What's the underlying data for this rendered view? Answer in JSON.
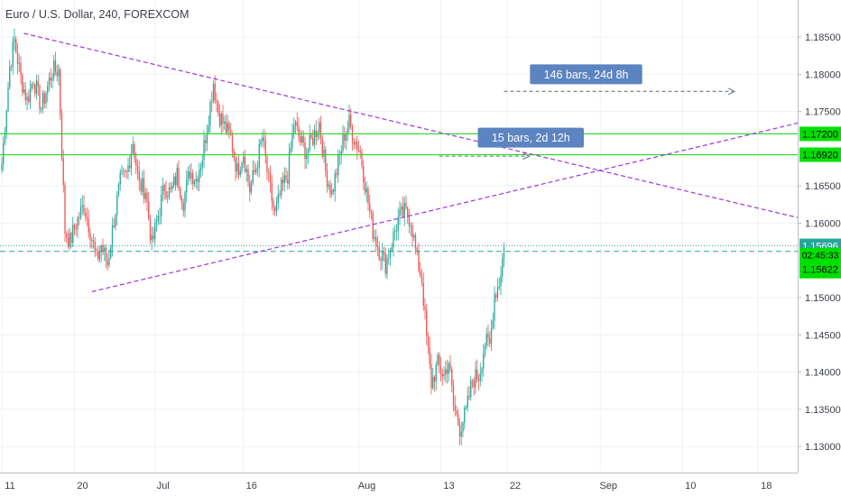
{
  "title": "Euro / U.S. Dollar, 240, FOREXCOM",
  "colors": {
    "up": "#26a69a",
    "down": "#ef5350",
    "grid": "#eef0f3",
    "hline": "#22dd22",
    "trend": "#9c35e0",
    "label_bg": "#5b84c0",
    "price_label": "#00e000",
    "axis_text": "#3a3e47"
  },
  "chart_data": {
    "type": "candlestick",
    "y_range": [
      1.1265,
      1.1895
    ],
    "y_ticks": [
      {
        "value": 1.185,
        "label": "1.18500"
      },
      {
        "value": 1.18,
        "label": "1.18000"
      },
      {
        "value": 1.175,
        "label": "1.17500"
      },
      {
        "value": 1.172,
        "label": "1.17200",
        "highlight": true
      },
      {
        "value": 1.1692,
        "label": "1.16920",
        "highlight": true
      },
      {
        "value": 1.165,
        "label": "1.16500"
      },
      {
        "value": 1.16,
        "label": "1.16000"
      },
      {
        "value": 1.15,
        "label": "1.15000"
      },
      {
        "value": 1.145,
        "label": "1.14500"
      },
      {
        "value": 1.14,
        "label": "1.14000"
      },
      {
        "value": 1.135,
        "label": "1.13500"
      },
      {
        "value": 1.13,
        "label": "1.13000"
      }
    ],
    "x_labels": [
      {
        "label": "11",
        "bar": 0
      },
      {
        "label": "20",
        "bar": 46
      },
      {
        "label": "Jul",
        "bar": 97
      },
      {
        "label": "16",
        "bar": 153
      },
      {
        "label": "Aug",
        "bar": 226
      },
      {
        "label": "13",
        "bar": 278
      },
      {
        "label": "22",
        "bar": 320
      },
      {
        "label": "Sep",
        "bar": 379
      },
      {
        "label": "10",
        "bar": 431
      },
      {
        "label": "18",
        "bar": 479
      }
    ],
    "horizontal_lines": [
      1.172,
      1.1692
    ],
    "price_labels": [
      {
        "value": 1.15696,
        "label": "1.15696"
      },
      {
        "value": 1.15622,
        "label": "02:45:33",
        "sublabel": "1.15622"
      }
    ],
    "trend_lines": [
      {
        "from": {
          "bar": 14,
          "price": 1.1855
        },
        "to": {
          "bar": 505,
          "price": 1.1607
        }
      },
      {
        "from": {
          "bar": 57,
          "price": 1.1508
        },
        "to": {
          "bar": 505,
          "price": 1.1735
        }
      }
    ],
    "measure_labels": [
      {
        "text": "146 bars, 24d 8h",
        "label_at": {
          "bar": 370,
          "price": 1.18
        },
        "arrow_from": {
          "bar": 318,
          "price": 1.1777
        },
        "arrow_to": {
          "bar": 464,
          "price": 1.1777
        }
      },
      {
        "text": "15 bars, 2d 12h",
        "label_at": {
          "bar": 335,
          "price": 1.1715
        },
        "arrow_from": {
          "bar": 277,
          "price": 1.169
        },
        "arrow_to": {
          "bar": 334,
          "price": 1.169
        }
      }
    ],
    "anchors": [
      {
        "bar": 0,
        "price": 1.168
      },
      {
        "bar": 5,
        "price": 1.181
      },
      {
        "bar": 8,
        "price": 1.1845
      },
      {
        "bar": 12,
        "price": 1.1795
      },
      {
        "bar": 16,
        "price": 1.1765
      },
      {
        "bar": 20,
        "price": 1.1795
      },
      {
        "bar": 25,
        "price": 1.1755
      },
      {
        "bar": 32,
        "price": 1.1805
      },
      {
        "bar": 36,
        "price": 1.1805
      },
      {
        "bar": 40,
        "price": 1.159
      },
      {
        "bar": 43,
        "price": 1.1575
      },
      {
        "bar": 48,
        "price": 1.1605
      },
      {
        "bar": 52,
        "price": 1.1625
      },
      {
        "bar": 56,
        "price": 1.159
      },
      {
        "bar": 60,
        "price": 1.155
      },
      {
        "bar": 63,
        "price": 1.157
      },
      {
        "bar": 67,
        "price": 1.1545
      },
      {
        "bar": 71,
        "price": 1.1605
      },
      {
        "bar": 75,
        "price": 1.1655
      },
      {
        "bar": 79,
        "price": 1.1665
      },
      {
        "bar": 83,
        "price": 1.171
      },
      {
        "bar": 87,
        "price": 1.165
      },
      {
        "bar": 91,
        "price": 1.1645
      },
      {
        "bar": 95,
        "price": 1.157
      },
      {
        "bar": 99,
        "price": 1.161
      },
      {
        "bar": 103,
        "price": 1.165
      },
      {
        "bar": 107,
        "price": 1.164
      },
      {
        "bar": 111,
        "price": 1.1665
      },
      {
        "bar": 115,
        "price": 1.163
      },
      {
        "bar": 119,
        "price": 1.167
      },
      {
        "bar": 123,
        "price": 1.166
      },
      {
        "bar": 127,
        "price": 1.169
      },
      {
        "bar": 131,
        "price": 1.1745
      },
      {
        "bar": 134,
        "price": 1.179
      },
      {
        "bar": 137,
        "price": 1.175
      },
      {
        "bar": 141,
        "price": 1.173
      },
      {
        "bar": 145,
        "price": 1.1715
      },
      {
        "bar": 149,
        "price": 1.167
      },
      {
        "bar": 153,
        "price": 1.1695
      },
      {
        "bar": 157,
        "price": 1.1645
      },
      {
        "bar": 161,
        "price": 1.1675
      },
      {
        "bar": 165,
        "price": 1.1715
      },
      {
        "bar": 169,
        "price": 1.1655
      },
      {
        "bar": 173,
        "price": 1.161
      },
      {
        "bar": 177,
        "price": 1.1645
      },
      {
        "bar": 181,
        "price": 1.1665
      },
      {
        "bar": 185,
        "price": 1.1735
      },
      {
        "bar": 189,
        "price": 1.171
      },
      {
        "bar": 193,
        "price": 1.1695
      },
      {
        "bar": 197,
        "price": 1.1715
      },
      {
        "bar": 201,
        "price": 1.1735
      },
      {
        "bar": 205,
        "price": 1.167
      },
      {
        "bar": 209,
        "price": 1.164
      },
      {
        "bar": 213,
        "price": 1.168
      },
      {
        "bar": 217,
        "price": 1.172
      },
      {
        "bar": 220,
        "price": 1.1735
      },
      {
        "bar": 223,
        "price": 1.1715
      },
      {
        "bar": 227,
        "price": 1.1695
      },
      {
        "bar": 231,
        "price": 1.164
      },
      {
        "bar": 235,
        "price": 1.159
      },
      {
        "bar": 239,
        "price": 1.1565
      },
      {
        "bar": 243,
        "price": 1.1545
      },
      {
        "bar": 247,
        "price": 1.1575
      },
      {
        "bar": 251,
        "price": 1.1605
      },
      {
        "bar": 255,
        "price": 1.1615
      },
      {
        "bar": 259,
        "price": 1.1605
      },
      {
        "bar": 263,
        "price": 1.155
      },
      {
        "bar": 266,
        "price": 1.1525
      },
      {
        "bar": 269,
        "price": 1.1445
      },
      {
        "bar": 272,
        "price": 1.1385
      },
      {
        "bar": 276,
        "price": 1.141
      },
      {
        "bar": 280,
        "price": 1.1395
      },
      {
        "bar": 283,
        "price": 1.1415
      },
      {
        "bar": 286,
        "price": 1.1355
      },
      {
        "bar": 290,
        "price": 1.1325
      },
      {
        "bar": 294,
        "price": 1.1345
      },
      {
        "bar": 298,
        "price": 1.139
      },
      {
        "bar": 302,
        "price": 1.1395
      },
      {
        "bar": 306,
        "price": 1.144
      },
      {
        "bar": 309,
        "price": 1.1435
      },
      {
        "bar": 312,
        "price": 1.1505
      },
      {
        "bar": 315,
        "price": 1.152
      },
      {
        "bar": 318,
        "price": 1.1568
      }
    ]
  }
}
